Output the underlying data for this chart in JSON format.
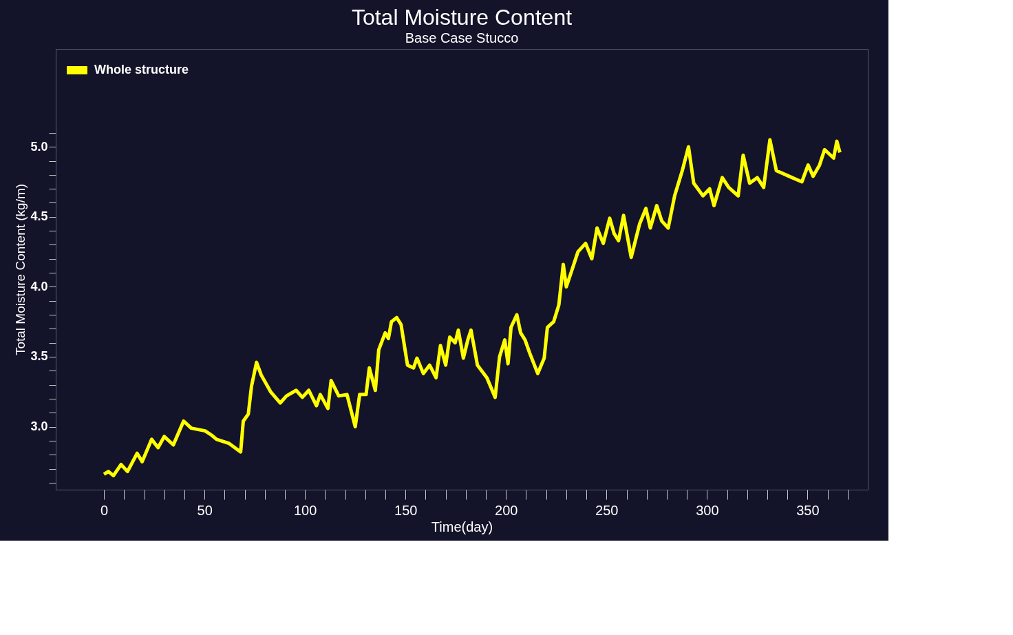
{
  "chart_data": {
    "type": "line",
    "title": "Total Moisture Content",
    "subtitle": "Base Case Stucco",
    "xlabel": "Time(day)",
    "ylabel": "Total Moisture Content (kg/m)",
    "x": [
      0,
      2.2,
      4.7,
      8.5,
      11.7,
      16.5,
      19,
      23.7,
      26.9,
      30,
      34.5,
      39.6,
      43.4,
      50.3,
      53.5,
      56,
      62.3,
      68,
      69.3,
      71.8,
      73.4,
      75.9,
      78.2,
      82.9,
      87.7,
      90.8,
      95.6,
      98.7,
      101.9,
      105.7,
      107.6,
      111.4,
      113,
      116.8,
      120.9,
      125,
      127.2,
      130.4,
      132,
      135,
      136.7,
      139.9,
      141.5,
      143,
      145.6,
      147.8,
      151,
      154,
      155.7,
      158.9,
      162,
      165.2,
      167.4,
      170,
      172,
      174.7,
      176.3,
      178.8,
      181,
      182.6,
      185.8,
      190.5,
      194.6,
      196.8,
      199.4,
      201,
      202.5,
      205.4,
      207.3,
      209.5,
      211.7,
      215.8,
      219,
      220.6,
      223.7,
      226.3,
      228.5,
      230,
      232.6,
      235.8,
      239.6,
      242.7,
      245.3,
      248.4,
      251.6,
      253.8,
      256,
      258.5,
      262.3,
      266.5,
      269.6,
      271.8,
      275,
      277.5,
      280.7,
      283.9,
      287.7,
      290.8,
      293.4,
      298,
      301.3,
      303.5,
      307.6,
      310.8,
      315.5,
      318,
      321.2,
      325,
      328.2,
      331.3,
      334.5,
      340.8,
      347.2,
      350.3,
      352.8,
      356,
      358.5,
      363,
      364.6,
      366.1
    ],
    "series": [
      {
        "name": "Whole structure",
        "color": "#ffff00",
        "values": [
          2.66,
          2.68,
          2.65,
          2.73,
          2.68,
          2.81,
          2.75,
          2.91,
          2.85,
          2.93,
          2.87,
          3.04,
          2.99,
          2.97,
          2.94,
          2.91,
          2.88,
          2.82,
          3.04,
          3.09,
          3.29,
          3.46,
          3.37,
          3.25,
          3.17,
          3.22,
          3.26,
          3.21,
          3.26,
          3.15,
          3.23,
          3.13,
          3.33,
          3.22,
          3.23,
          3.0,
          3.23,
          3.23,
          3.42,
          3.26,
          3.55,
          3.67,
          3.63,
          3.75,
          3.78,
          3.73,
          3.44,
          3.42,
          3.49,
          3.38,
          3.44,
          3.35,
          3.58,
          3.44,
          3.64,
          3.6,
          3.69,
          3.49,
          3.62,
          3.69,
          3.44,
          3.35,
          3.21,
          3.5,
          3.62,
          3.45,
          3.71,
          3.8,
          3.67,
          3.62,
          3.53,
          3.38,
          3.49,
          3.71,
          3.75,
          3.87,
          4.16,
          4.0,
          4.11,
          4.25,
          4.31,
          4.2,
          4.42,
          4.31,
          4.49,
          4.38,
          4.33,
          4.51,
          4.21,
          4.45,
          4.56,
          4.42,
          4.58,
          4.47,
          4.42,
          4.65,
          4.83,
          5.0,
          4.74,
          4.65,
          4.7,
          4.58,
          4.78,
          4.71,
          4.65,
          4.94,
          4.74,
          4.78,
          4.71,
          5.05,
          4.83,
          4.79,
          4.75,
          4.87,
          4.79,
          4.87,
          4.98,
          4.92,
          5.04,
          4.96
        ]
      }
    ],
    "xlim": [
      -24,
      380
    ],
    "xticks": [
      0,
      {
        "value": 10,
        "label": null
      },
      {
        "value": 20,
        "label": null
      },
      {
        "value": 30,
        "label": null
      },
      {
        "value": 40,
        "label": null
      },
      50,
      {
        "value": 60,
        "label": null
      },
      {
        "value": 70,
        "label": null
      },
      {
        "value": 80,
        "label": null
      },
      {
        "value": 90,
        "label": null
      },
      100,
      {
        "value": 110,
        "label": null
      },
      {
        "value": 120,
        "label": null
      },
      {
        "value": 130,
        "label": null
      },
      {
        "value": 140,
        "label": null
      },
      150,
      {
        "value": 160,
        "label": null
      },
      {
        "value": 170,
        "label": null
      },
      {
        "value": 180,
        "label": null
      },
      {
        "value": 190,
        "label": null
      },
      200,
      {
        "value": 210,
        "label": null
      },
      {
        "value": 220,
        "label": null
      },
      {
        "value": 230,
        "label": null
      },
      {
        "value": 240,
        "label": null
      },
      250,
      {
        "value": 260,
        "label": null
      },
      {
        "value": 270,
        "label": null
      },
      {
        "value": 280,
        "label": null
      },
      {
        "value": 290,
        "label": null
      },
      300,
      {
        "value": 310,
        "label": null
      },
      {
        "value": 320,
        "label": null
      },
      {
        "value": 330,
        "label": null
      },
      {
        "value": 340,
        "label": null
      },
      350,
      {
        "value": 360,
        "label": null
      },
      {
        "value": 370,
        "label": null
      }
    ],
    "ylim": [
      2.55,
      5.7
    ],
    "yticks": [
      {
        "value": 2.6,
        "label": null
      },
      {
        "value": 2.7,
        "label": null
      },
      {
        "value": 2.8,
        "label": null
      },
      {
        "value": 2.9,
        "label": null
      },
      {
        "value": 3.0,
        "label": "3.0"
      },
      {
        "value": 3.1,
        "label": null
      },
      {
        "value": 3.2,
        "label": null
      },
      {
        "value": 3.3,
        "label": null
      },
      {
        "value": 3.4,
        "label": null
      },
      {
        "value": 3.5,
        "label": "3.5"
      },
      {
        "value": 3.6,
        "label": null
      },
      {
        "value": 3.7,
        "label": null
      },
      {
        "value": 3.8,
        "label": null
      },
      {
        "value": 3.9,
        "label": null
      },
      {
        "value": 4.0,
        "label": "4.0"
      },
      {
        "value": 4.1,
        "label": null
      },
      {
        "value": 4.2,
        "label": null
      },
      {
        "value": 4.3,
        "label": null
      },
      {
        "value": 4.4,
        "label": null
      },
      {
        "value": 4.5,
        "label": "4.5"
      },
      {
        "value": 4.6,
        "label": null
      },
      {
        "value": 4.7,
        "label": null
      },
      {
        "value": 4.8,
        "label": null
      },
      {
        "value": 4.9,
        "label": null
      },
      {
        "value": 5.0,
        "label": "5.0"
      },
      {
        "value": 5.1,
        "label": null
      }
    ],
    "grid": false,
    "legend": "top left",
    "marker": "none",
    "line_style": "solid"
  }
}
